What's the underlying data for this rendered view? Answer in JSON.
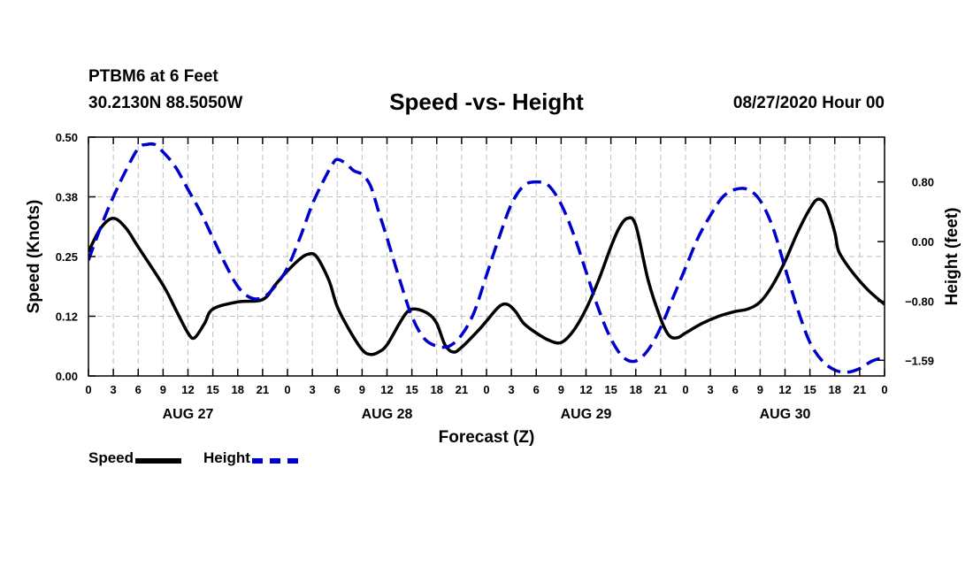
{
  "header": {
    "station": "PTBM6 at 6 Feet",
    "coords": "30.2130N 88.5050W",
    "title": "Speed -vs- Height",
    "stamp": "08/27/2020 Hour 00"
  },
  "legend": {
    "speed": "Speed",
    "height": "Height"
  },
  "colors": {
    "speed": "#000000",
    "height": "#0000cc",
    "grid": "#bdbdbd"
  },
  "chart_data": {
    "type": "line",
    "title": "Speed -vs- Height",
    "xlabel": "Forecast (Z)",
    "ylabel": "Speed (Knots)",
    "y2label": "Height (feet)",
    "xlim": [
      0,
      96
    ],
    "ylim": [
      0,
      0.5
    ],
    "y2lim": [
      -1.8,
      1.4
    ],
    "x_ticks": [
      0,
      3,
      6,
      9,
      12,
      15,
      18,
      21,
      24,
      27,
      30,
      33,
      36,
      39,
      42,
      45,
      48,
      51,
      54,
      57,
      60,
      63,
      66,
      69,
      72,
      75,
      78,
      81,
      84,
      87,
      90,
      93,
      96
    ],
    "x_tick_labels": [
      "0",
      "3",
      "6",
      "9",
      "12",
      "15",
      "18",
      "21",
      "0",
      "3",
      "6",
      "9",
      "12",
      "15",
      "18",
      "21",
      "0",
      "3",
      "6",
      "9",
      "12",
      "15",
      "18",
      "21",
      "0",
      "3",
      "6",
      "9",
      "12",
      "15",
      "18",
      "21",
      "0"
    ],
    "day_labels": [
      {
        "x": 12,
        "label": "AUG 27"
      },
      {
        "x": 36,
        "label": "AUG 28"
      },
      {
        "x": 60,
        "label": "AUG 29"
      },
      {
        "x": 84,
        "label": "AUG 30"
      }
    ],
    "y_ticks": [
      0.0,
      0.125,
      0.25,
      0.375,
      0.5
    ],
    "y_tick_labels": [
      "0.00",
      "0.12",
      "0.25",
      "0.38",
      "0.50"
    ],
    "y2_ticks": [
      -1.59,
      -0.8,
      0.0,
      0.8
    ],
    "y2_tick_labels": [
      "−1.59",
      "−0.80",
      "0.00",
      "0.80"
    ],
    "grid": true,
    "legend_position": "bottom-left",
    "series": [
      {
        "name": "Speed",
        "axis": "left",
        "style": "solid",
        "points": [
          [
            0,
            0.26
          ],
          [
            1.5,
            0.31
          ],
          [
            3,
            0.33
          ],
          [
            4.5,
            0.31
          ],
          [
            6,
            0.27
          ],
          [
            9,
            0.19
          ],
          [
            10.5,
            0.14
          ],
          [
            12,
            0.09
          ],
          [
            12.8,
            0.08
          ],
          [
            14,
            0.11
          ],
          [
            15,
            0.14
          ],
          [
            18,
            0.155
          ],
          [
            21,
            0.16
          ],
          [
            22.5,
            0.19
          ],
          [
            24,
            0.22
          ],
          [
            25.5,
            0.245
          ],
          [
            26.5,
            0.255
          ],
          [
            27.5,
            0.25
          ],
          [
            29,
            0.2
          ],
          [
            30,
            0.145
          ],
          [
            31.5,
            0.095
          ],
          [
            33,
            0.055
          ],
          [
            34,
            0.045
          ],
          [
            35,
            0.05
          ],
          [
            36,
            0.065
          ],
          [
            37.5,
            0.11
          ],
          [
            38.5,
            0.135
          ],
          [
            39.5,
            0.14
          ],
          [
            41,
            0.13
          ],
          [
            42,
            0.11
          ],
          [
            43,
            0.065
          ],
          [
            44,
            0.05
          ],
          [
            45,
            0.06
          ],
          [
            47,
            0.095
          ],
          [
            48,
            0.115
          ],
          [
            49.5,
            0.145
          ],
          [
            50.5,
            0.15
          ],
          [
            51.5,
            0.135
          ],
          [
            52.5,
            0.11
          ],
          [
            54,
            0.09
          ],
          [
            55.5,
            0.075
          ],
          [
            57,
            0.07
          ],
          [
            58.5,
            0.095
          ],
          [
            60,
            0.14
          ],
          [
            61.5,
            0.2
          ],
          [
            63,
            0.27
          ],
          [
            64,
            0.31
          ],
          [
            65,
            0.33
          ],
          [
            66,
            0.315
          ],
          [
            67.5,
            0.2
          ],
          [
            69,
            0.12
          ],
          [
            70,
            0.085
          ],
          [
            71,
            0.08
          ],
          [
            72,
            0.09
          ],
          [
            74,
            0.11
          ],
          [
            76,
            0.125
          ],
          [
            78,
            0.135
          ],
          [
            79.5,
            0.14
          ],
          [
            81,
            0.155
          ],
          [
            82.5,
            0.19
          ],
          [
            84,
            0.24
          ],
          [
            85.5,
            0.3
          ],
          [
            87,
            0.35
          ],
          [
            88,
            0.37
          ],
          [
            89,
            0.355
          ],
          [
            90,
            0.3
          ],
          [
            90.5,
            0.26
          ],
          [
            92,
            0.22
          ],
          [
            94,
            0.18
          ],
          [
            96,
            0.15
          ]
        ]
      },
      {
        "name": "Height",
        "axis": "right",
        "style": "dashed",
        "points": [
          [
            0,
            -0.25
          ],
          [
            1.5,
            0.2
          ],
          [
            3,
            0.6
          ],
          [
            4.5,
            0.95
          ],
          [
            6,
            1.25
          ],
          [
            7,
            1.3
          ],
          [
            8,
            1.3
          ],
          [
            9,
            1.2
          ],
          [
            10.5,
            1.0
          ],
          [
            12,
            0.7
          ],
          [
            13.5,
            0.4
          ],
          [
            15,
            0.05
          ],
          [
            16.5,
            -0.3
          ],
          [
            18,
            -0.6
          ],
          [
            19.5,
            -0.75
          ],
          [
            21,
            -0.75
          ],
          [
            22.5,
            -0.6
          ],
          [
            24,
            -0.35
          ],
          [
            25.5,
            0.05
          ],
          [
            27,
            0.5
          ],
          [
            28.5,
            0.85
          ],
          [
            29.5,
            1.05
          ],
          [
            30,
            1.1
          ],
          [
            31,
            1.05
          ],
          [
            32,
            0.95
          ],
          [
            33,
            0.9
          ],
          [
            34,
            0.75
          ],
          [
            35,
            0.4
          ],
          [
            36,
            0.05
          ],
          [
            37.5,
            -0.5
          ],
          [
            39,
            -1.0
          ],
          [
            40.5,
            -1.3
          ],
          [
            42,
            -1.4
          ],
          [
            43.5,
            -1.4
          ],
          [
            45,
            -1.25
          ],
          [
            46.5,
            -0.95
          ],
          [
            48,
            -0.45
          ],
          [
            49.5,
            0.05
          ],
          [
            51,
            0.5
          ],
          [
            52.5,
            0.75
          ],
          [
            54,
            0.8
          ],
          [
            55.5,
            0.75
          ],
          [
            57,
            0.5
          ],
          [
            58.5,
            0.1
          ],
          [
            60,
            -0.4
          ],
          [
            61.5,
            -0.9
          ],
          [
            63,
            -1.3
          ],
          [
            64.5,
            -1.55
          ],
          [
            66,
            -1.6
          ],
          [
            67.5,
            -1.45
          ],
          [
            69,
            -1.15
          ],
          [
            70.5,
            -0.75
          ],
          [
            72,
            -0.35
          ],
          [
            73.5,
            0.05
          ],
          [
            75,
            0.35
          ],
          [
            76.5,
            0.6
          ],
          [
            78,
            0.7
          ],
          [
            79.5,
            0.7
          ],
          [
            81,
            0.55
          ],
          [
            82.5,
            0.2
          ],
          [
            84,
            -0.35
          ],
          [
            85.5,
            -0.9
          ],
          [
            87,
            -1.35
          ],
          [
            88.5,
            -1.6
          ],
          [
            90,
            -1.72
          ],
          [
            91.5,
            -1.75
          ],
          [
            93,
            -1.7
          ],
          [
            94.5,
            -1.6
          ],
          [
            96,
            -1.55
          ]
        ]
      }
    ]
  }
}
